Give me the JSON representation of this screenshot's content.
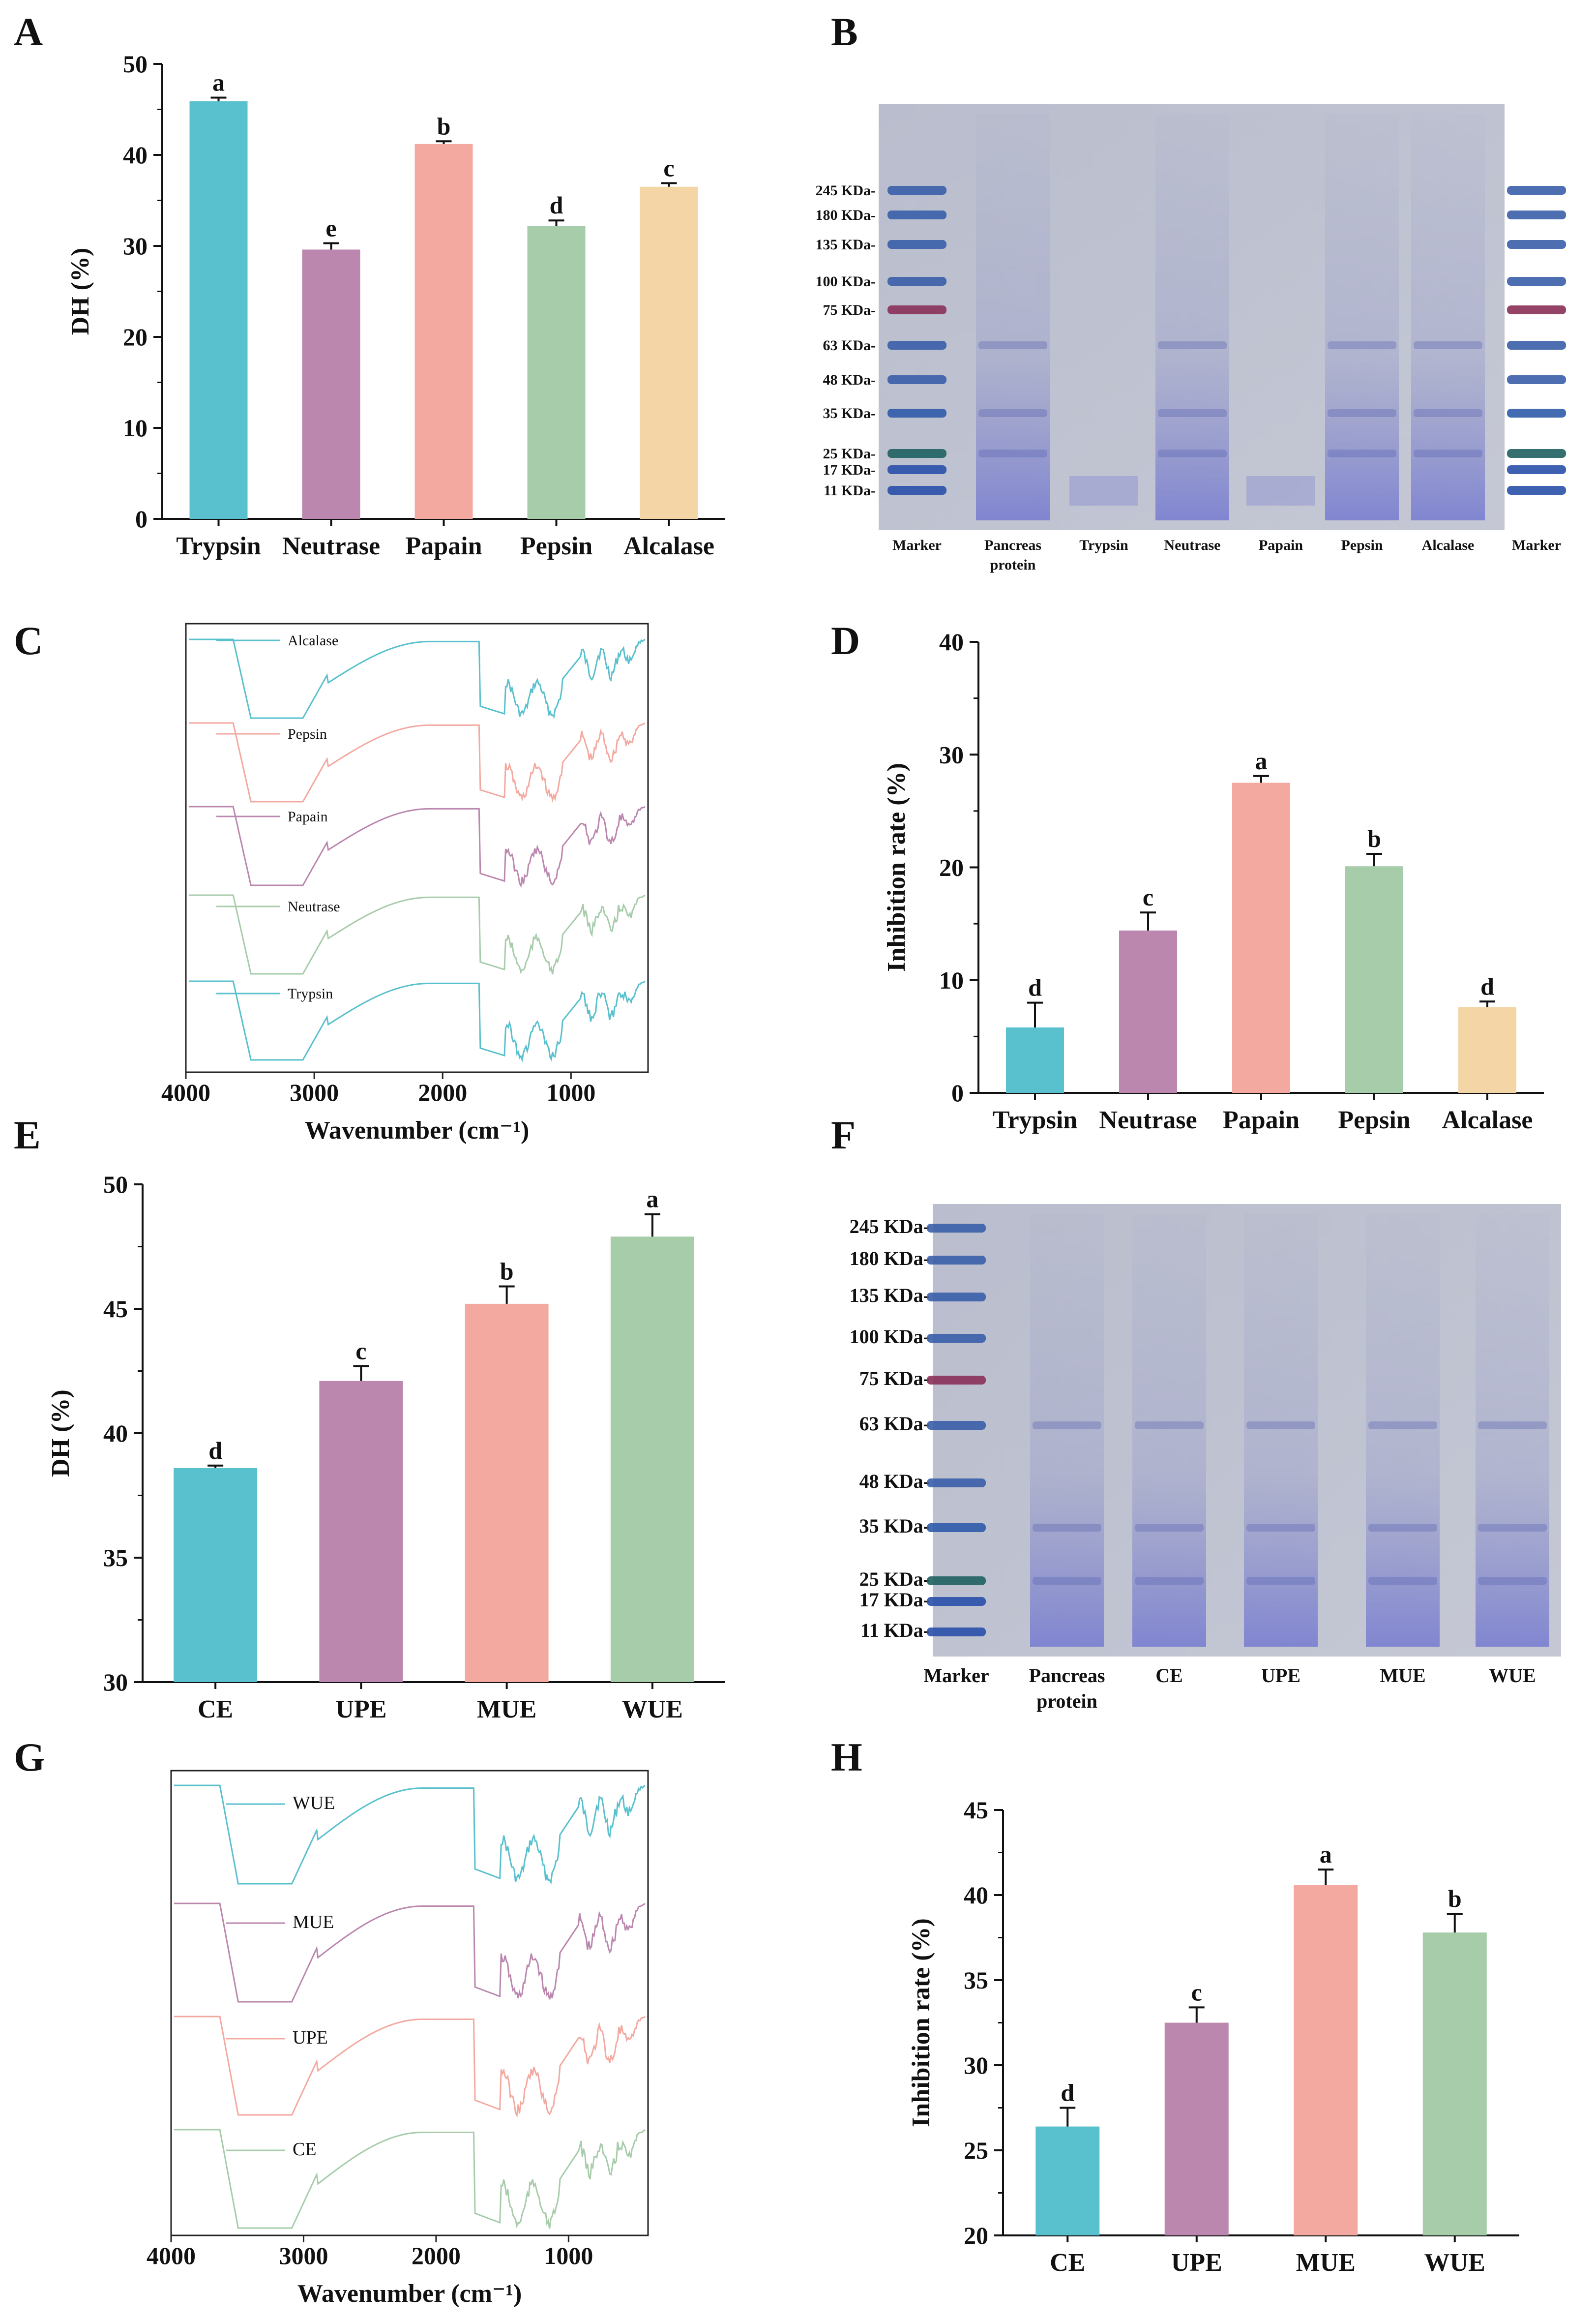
{
  "panel_labels": [
    "A",
    "B",
    "C",
    "D",
    "E",
    "F",
    "G",
    "H"
  ],
  "colors": {
    "Trypsin": "#59c0ce",
    "Neutrase": "#bb87ae",
    "Papain": "#f3a9a0",
    "Pepsin": "#a7ccaa",
    "Alcalase": "#f3d5a6",
    "CE": "#59c0ce",
    "UPE": "#bb87ae",
    "MUE": "#f3a9a0",
    "WUE": "#a7ccaa"
  },
  "chart_data": [
    {
      "id": "A",
      "type": "bar",
      "title": "",
      "xlabel": "",
      "ylabel": "DH (%)",
      "categories": [
        "Trypsin",
        "Neutrase",
        "Papain",
        "Pepsin",
        "Alcalase"
      ],
      "values": [
        45.9,
        29.6,
        41.2,
        32.2,
        36.5
      ],
      "errors": [
        0.4,
        0.7,
        0.3,
        0.6,
        0.4
      ],
      "letters": [
        "a",
        "e",
        "b",
        "d",
        "c"
      ],
      "ylim": [
        0,
        50
      ],
      "yticks": [
        0,
        10,
        20,
        30,
        40,
        50
      ],
      "grid": false
    },
    {
      "id": "D",
      "type": "bar",
      "title": "",
      "xlabel": "",
      "ylabel": "Inhibition rate (%)",
      "categories": [
        "Trypsin",
        "Neutrase",
        "Papain",
        "Pepsin",
        "Alcalase"
      ],
      "values": [
        5.8,
        14.4,
        27.5,
        20.1,
        7.6
      ],
      "errors": [
        2.2,
        1.6,
        0.6,
        1.1,
        0.5
      ],
      "letters": [
        "d",
        "c",
        "a",
        "b",
        "d"
      ],
      "ylim": [
        0,
        40
      ],
      "yticks": [
        0,
        10,
        20,
        30,
        40
      ],
      "grid": false
    },
    {
      "id": "E",
      "type": "bar",
      "title": "",
      "xlabel": "",
      "ylabel": "DH (%)",
      "categories": [
        "CE",
        "UPE",
        "MUE",
        "WUE"
      ],
      "values": [
        38.6,
        42.1,
        45.2,
        47.9
      ],
      "errors": [
        0.1,
        0.6,
        0.7,
        0.9
      ],
      "letters": [
        "d",
        "c",
        "b",
        "a"
      ],
      "ylim": [
        30,
        50
      ],
      "yticks": [
        30,
        35,
        40,
        45,
        50
      ],
      "grid": false
    },
    {
      "id": "H",
      "type": "bar",
      "title": "",
      "xlabel": "",
      "ylabel": "Inhibition rate (%)",
      "categories": [
        "CE",
        "UPE",
        "MUE",
        "WUE"
      ],
      "values": [
        26.4,
        32.5,
        40.6,
        37.8
      ],
      "errors": [
        1.1,
        0.9,
        0.9,
        1.1
      ],
      "letters": [
        "d",
        "c",
        "a",
        "b"
      ],
      "ylim": [
        20,
        45
      ],
      "yticks": [
        20,
        25,
        30,
        35,
        40,
        45
      ],
      "grid": false
    },
    {
      "id": "C",
      "type": "line",
      "title": "",
      "xlabel": "Wavenumber (cm⁻¹)",
      "ylabel": "",
      "xlim": [
        4000,
        400
      ],
      "xticks": [
        4000,
        3000,
        2000,
        1000
      ],
      "series": [
        {
          "name": "Alcalase",
          "color": "#59c0ce"
        },
        {
          "name": "Pepsin",
          "color": "#f3a9a0"
        },
        {
          "name": "Papain",
          "color": "#bb87ae"
        },
        {
          "name": "Neutrase",
          "color": "#a7ccaa"
        },
        {
          "name": "Trypsin",
          "color": "#59c0ce"
        }
      ]
    },
    {
      "id": "G",
      "type": "line",
      "title": "",
      "xlabel": "Wavenumber (cm⁻¹)",
      "ylabel": "",
      "xlim": [
        4000,
        400
      ],
      "xticks": [
        4000,
        3000,
        2000,
        1000
      ],
      "series": [
        {
          "name": "WUE",
          "color": "#59c0ce"
        },
        {
          "name": "MUE",
          "color": "#bb87ae"
        },
        {
          "name": "UPE",
          "color": "#f3a9a0"
        },
        {
          "name": "CE",
          "color": "#a7ccaa"
        }
      ]
    }
  ],
  "gel_B": {
    "markers": [
      "245 KDa-",
      "180 KDa-",
      "135 KDa-",
      "100 KDa-",
      "75 KDa-",
      "63 KDa-",
      "48 KDa-",
      "35 KDa-",
      "25 KDa-",
      "17 KDa-",
      "11 KDa-"
    ],
    "lanes": [
      "Marker",
      "Pancreas protein",
      "Trypsin",
      "Neutrase",
      "Papain",
      "Pepsin",
      "Alcalase",
      "Marker"
    ]
  },
  "gel_F": {
    "markers": [
      "245 KDa-",
      "180 KDa-",
      "135 KDa-",
      "100 KDa-",
      "75 KDa-",
      "63 KDa-",
      "48 KDa-",
      "35 KDa-",
      "25 KDa-",
      "17 KDa-",
      "11 KDa-"
    ],
    "lanes": [
      "Marker",
      "Pancreas protein",
      "CE",
      "UPE",
      "MUE",
      "WUE"
    ]
  }
}
